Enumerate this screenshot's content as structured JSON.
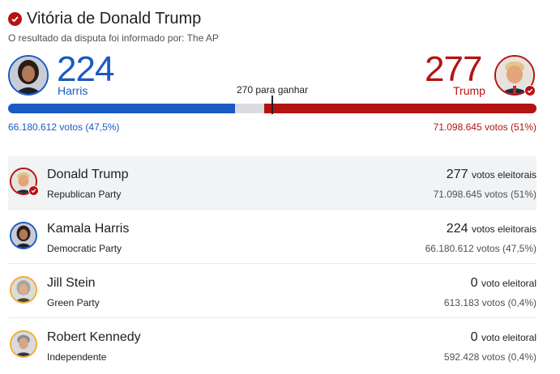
{
  "header": {
    "title": "Vitória de Donald Trump",
    "source": "O resultado da disputa foi informado por: The AP",
    "check_icon": "check-circle-icon"
  },
  "scoreboard": {
    "left": {
      "name": "Harris",
      "electoral": "224",
      "votes": "66.180.612 votos (47,5%)",
      "color": "#1a5ac2",
      "share": 0.429
    },
    "right": {
      "name": "Trump",
      "electoral": "277",
      "votes": "71.098.645 votos (51%)",
      "color": "#b31412",
      "share": 0.516
    },
    "to_win": "270 para ganhar"
  },
  "candidates": [
    {
      "name": "Donald Trump",
      "party": "Republican Party",
      "electoral": "277",
      "electoral_unit": "votos eleitorais",
      "popular": "71.098.645 votos (51%)",
      "winner": true
    },
    {
      "name": "Kamala Harris",
      "party": "Democratic Party",
      "electoral": "224",
      "electoral_unit": "votos eleitorais",
      "popular": "66.180.612 votos (47,5%)",
      "winner": false
    },
    {
      "name": "Jill Stein",
      "party": "Green Party",
      "electoral": "0",
      "electoral_unit": "voto eleitoral",
      "popular": "613.183 votos (0,4%)",
      "winner": false
    },
    {
      "name": "Robert Kennedy",
      "party": "Independente",
      "electoral": "0",
      "electoral_unit": "voto eleitoral",
      "popular": "592.428 votos (0,4%)",
      "winner": false
    }
  ]
}
